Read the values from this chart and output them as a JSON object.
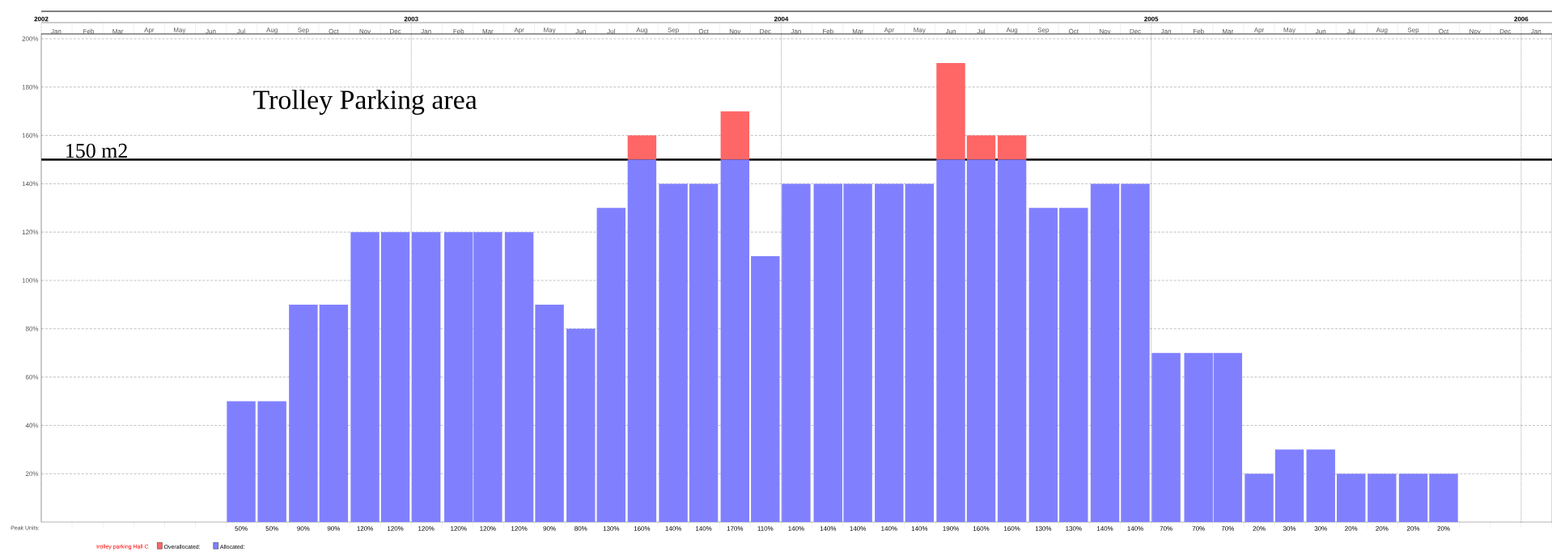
{
  "chart_data": {
    "type": "bar",
    "title": "Trolley Parking area",
    "legend_title": "trolley parking Hall C",
    "annotations": [
      "Peak Units:"
    ],
    "stacked": true,
    "grid": true,
    "legend": "bottom left",
    "x": [
      "2002-07-16",
      "2002-08-16",
      "2002-09-16",
      "2002-10-16",
      "2002-11-16",
      "2002-12-16",
      "2003-01-16",
      "2003-02-16",
      "2003-03-16",
      "2003-04-16",
      "2003-05-16",
      "2003-06-16",
      "2003-07-16",
      "2003-08-16",
      "2003-09-16",
      "2003-10-16",
      "2003-11-16",
      "2003-12-16",
      "2004-01-16",
      "2004-02-16",
      "2004-03-16",
      "2004-04-16",
      "2004-05-16",
      "2004-06-16",
      "2004-07-16",
      "2004-08-16",
      "2004-09-16",
      "2004-10-16",
      "2004-11-16",
      "2004-12-16",
      "2005-01-16",
      "2005-02-16",
      "2005-03-16",
      "2005-04-16",
      "2005-05-16",
      "2005-06-16",
      "2005-07-16",
      "2005-08-16",
      "2005-09-16",
      "2005-10-16"
    ],
    "xlim": [
      "2002-01",
      "2006-02"
    ],
    "x2lim": [
      "2002-01",
      "2006-02"
    ],
    "xticks": [
      {
        "value": "2002-01-16",
        "label": "Jan"
      },
      {
        "value": "2002-02-16",
        "label": "Feb"
      },
      {
        "value": "2002-03-16",
        "label": "Mar"
      },
      {
        "value": "2002-04-16",
        "label": "Apr"
      },
      {
        "value": "2002-05-16",
        "label": "May"
      },
      {
        "value": "2002-06-16",
        "label": "Jun"
      },
      {
        "value": "2002-07-16",
        "label": "Jul"
      },
      {
        "value": "2002-08-16",
        "label": "Aug"
      },
      {
        "value": "2002-09-16",
        "label": "Sep"
      },
      {
        "value": "2002-10-16",
        "label": "Oct"
      },
      {
        "value": "2002-11-16",
        "label": "Nov"
      },
      {
        "value": "2002-12-16",
        "label": "Dec"
      },
      {
        "value": "2003-01-16",
        "label": "Jan"
      },
      {
        "value": "2003-02-16",
        "label": "Feb"
      },
      {
        "value": "2003-03-16",
        "label": "Mar"
      },
      {
        "value": "2003-04-16",
        "label": "Apr"
      },
      {
        "value": "2003-05-16",
        "label": "May"
      },
      {
        "value": "2003-06-16",
        "label": "Jun"
      },
      {
        "value": "2003-07-16",
        "label": "Jul"
      },
      {
        "value": "2003-08-16",
        "label": "Aug"
      },
      {
        "value": "2003-09-16",
        "label": "Sep"
      },
      {
        "value": "2003-10-16",
        "label": "Oct"
      },
      {
        "value": "2003-11-16",
        "label": "Nov"
      },
      {
        "value": "2003-12-16",
        "label": "Dec"
      },
      {
        "value": "2004-01-16",
        "label": "Jan"
      },
      {
        "value": "2004-02-16",
        "label": "Feb"
      },
      {
        "value": "2004-03-16",
        "label": "Mar"
      },
      {
        "value": "2004-04-16",
        "label": "Apr"
      },
      {
        "value": "2004-05-16",
        "label": "May"
      },
      {
        "value": "2004-06-16",
        "label": "Jun"
      },
      {
        "value": "2004-07-16",
        "label": "Jul"
      },
      {
        "value": "2004-08-16",
        "label": "Aug"
      },
      {
        "value": "2004-09-16",
        "label": "Sep"
      },
      {
        "value": "2004-10-16",
        "label": "Oct"
      },
      {
        "value": "2004-11-16",
        "label": "Nov"
      },
      {
        "value": "2004-12-16",
        "label": "Dec"
      },
      {
        "value": "2005-01-16",
        "label": "Jan"
      },
      {
        "value": "2005-02-16",
        "label": "Feb"
      },
      {
        "value": "2005-03-16",
        "label": "Mar"
      },
      {
        "value": "2005-04-16",
        "label": "Apr"
      },
      {
        "value": "2005-05-16",
        "label": "May"
      },
      {
        "value": "2005-06-16",
        "label": "Jun"
      },
      {
        "value": "2005-07-16",
        "label": "Jul"
      },
      {
        "value": "2005-08-16",
        "label": "Aug"
      },
      {
        "value": "2005-09-16",
        "label": "Sep"
      },
      {
        "value": "2005-10-16",
        "label": "Oct"
      },
      {
        "value": "2005-11-16",
        "label": "Nov"
      },
      {
        "value": "2005-12-16",
        "label": "Dec"
      },
      {
        "value": "2006-01-16",
        "label": "Jan"
      }
    ],
    "x2ticks": [
      {
        "value": "2002-01",
        "label": "2002"
      },
      {
        "value": "2003-01",
        "label": "2003"
      },
      {
        "value": "2004-01",
        "label": "2004"
      },
      {
        "value": "2005-01",
        "label": "2005"
      },
      {
        "value": "2006-01",
        "label": "2006"
      }
    ],
    "ylim": [
      0,
      202
    ],
    "yticks": [
      {
        "value": 20,
        "label": "20%"
      },
      {
        "value": 40,
        "label": "40%"
      },
      {
        "value": 60,
        "label": "60%"
      },
      {
        "value": 80,
        "label": "80%"
      },
      {
        "value": 100,
        "label": "100%"
      },
      {
        "value": 120,
        "label": "120%"
      },
      {
        "value": 140,
        "label": "140%"
      },
      {
        "value": 160,
        "label": "160%"
      },
      {
        "value": 180,
        "label": "180%"
      },
      {
        "value": 200,
        "label": "200%"
      }
    ],
    "series": [
      {
        "name": "Allocated:",
        "color": "#8080ff",
        "values": [
          50,
          50,
          90,
          90,
          120,
          120,
          120,
          120,
          120,
          120,
          90,
          80,
          130,
          150,
          140,
          140,
          150,
          110,
          140,
          140,
          140,
          140,
          140,
          150,
          150,
          150,
          130,
          130,
          140,
          140,
          70,
          70,
          70,
          20,
          30,
          30,
          20,
          20,
          20,
          20
        ]
      },
      {
        "name": "Overallocated:",
        "color": "#ff6666",
        "values": [
          0,
          0,
          0,
          0,
          0,
          0,
          0,
          0,
          0,
          0,
          0,
          0,
          0,
          10,
          0,
          0,
          20,
          0,
          0,
          0,
          0,
          0,
          0,
          40,
          10,
          10,
          0,
          0,
          0,
          0,
          0,
          0,
          0,
          0,
          0,
          0,
          0,
          0,
          0,
          0
        ]
      }
    ],
    "totals": [
      "50%",
      "50%",
      "90%",
      "90%",
      "120%",
      "120%",
      "120%",
      "120%",
      "120%",
      "120%",
      "90%",
      "80%",
      "130%",
      "160%",
      "140%",
      "140%",
      "170%",
      "110%",
      "140%",
      "140%",
      "140%",
      "140%",
      "140%",
      "190%",
      "160%",
      "160%",
      "130%",
      "130%",
      "140%",
      "140%",
      "70%",
      "70%",
      "70%",
      "20%",
      "30%",
      "30%",
      "20%",
      "20%",
      "20%",
      "20%"
    ],
    "ref_lines": [
      {
        "axis": "y",
        "value": 150,
        "label": "150 m2",
        "color": "#000000"
      }
    ]
  }
}
